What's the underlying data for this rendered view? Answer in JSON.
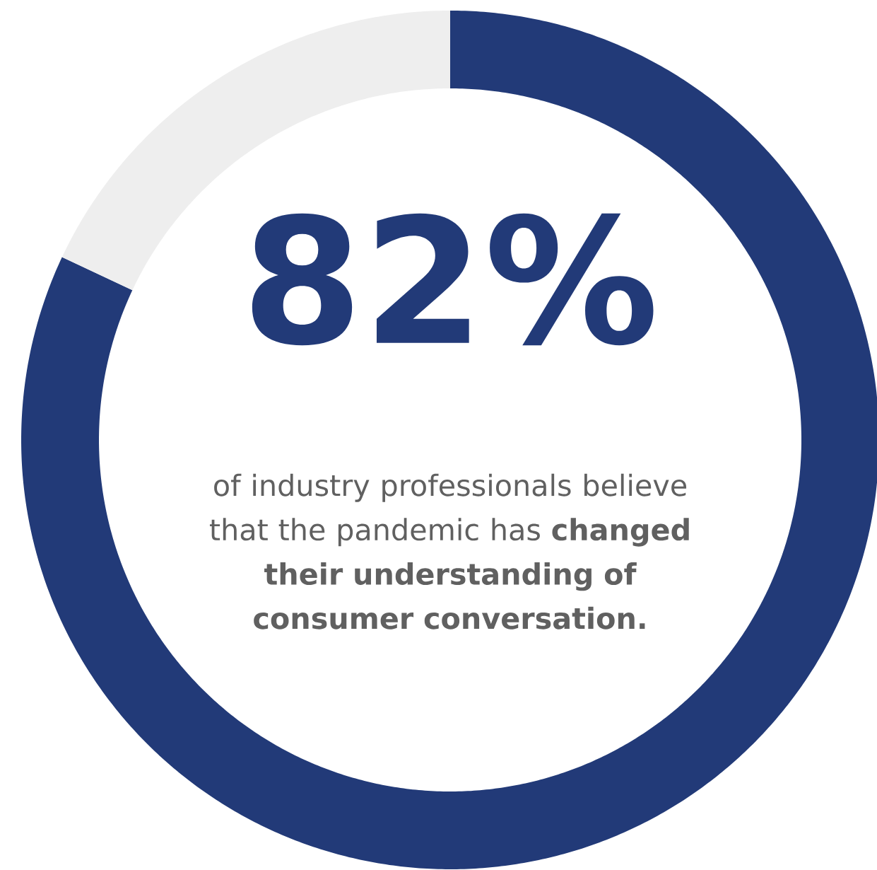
{
  "chart_data": {
    "type": "donut",
    "categories": [
      null,
      null
    ],
    "values": [
      82,
      18
    ],
    "colors": [
      "#223a78",
      "#eeeeee"
    ],
    "value_labels": [
      "82%",
      null
    ],
    "annotations": [
      "of industry professionals believe that the pandemic has **changed their understanding of consumer conversation.**"
    ]
  }
}
